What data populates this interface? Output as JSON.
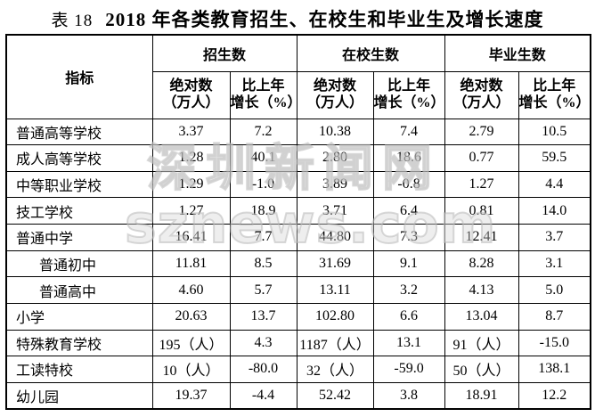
{
  "title": {
    "label": "表 18",
    "text": "2018 年各类教育招生、在校生和毕业生及增长速度"
  },
  "table": {
    "indicator_header": "指标",
    "groups": [
      {
        "label": "招生数"
      },
      {
        "label": "在校生数"
      },
      {
        "label": "毕业生数"
      }
    ],
    "subheaders": {
      "absolute_line1": "绝对数",
      "absolute_line2": "（万人）",
      "growth_line1": "比上年",
      "growth_line2": "增长（%）"
    },
    "rows": [
      {
        "label": "普通高等学校",
        "indent": false,
        "values": [
          "3.37",
          "7.2",
          "10.38",
          "7.4",
          "2.79",
          "10.5"
        ]
      },
      {
        "label": "成人高等学校",
        "indent": false,
        "values": [
          "1.28",
          "40.1",
          "2.80",
          "18.6",
          "0.77",
          "59.5"
        ]
      },
      {
        "label": "中等职业学校",
        "indent": false,
        "values": [
          "1.29",
          "-1.0",
          "3.89",
          "-0.8",
          "1.27",
          "4.4"
        ]
      },
      {
        "label": "技工学校",
        "indent": false,
        "values": [
          "1.27",
          "18.9",
          "3.71",
          "6.4",
          "0.81",
          "14.0"
        ]
      },
      {
        "label": "普通中学",
        "indent": false,
        "values": [
          "16.41",
          "7.7",
          "44.80",
          "7.3",
          "12.41",
          "3.7"
        ]
      },
      {
        "label": "普通初中",
        "indent": true,
        "values": [
          "11.81",
          "8.5",
          "31.69",
          "9.1",
          "8.28",
          "3.1"
        ]
      },
      {
        "label": "普通高中",
        "indent": true,
        "values": [
          "4.60",
          "5.7",
          "13.11",
          "3.2",
          "4.13",
          "5.0"
        ]
      },
      {
        "label": "小学",
        "indent": false,
        "values": [
          "20.63",
          "13.7",
          "102.80",
          "6.6",
          "13.04",
          "8.7"
        ]
      },
      {
        "label": "特殊教育学校",
        "indent": false,
        "values": [
          "195（人）",
          "4.3",
          "1187（人）",
          "13.1",
          "91（人）",
          "-15.0"
        ]
      },
      {
        "label": "工读特校",
        "indent": false,
        "values": [
          "10（人）",
          "-80.0",
          "32（人）",
          "-59.0",
          "50（人）",
          "138.1"
        ]
      },
      {
        "label": "幼儿园",
        "indent": false,
        "values": [
          "19.37",
          "-4.4",
          "52.42",
          "3.8",
          "18.91",
          "12.2"
        ]
      }
    ]
  },
  "watermark": {
    "line1": "深圳新闻网",
    "line2": "sznews.com"
  },
  "colors": {
    "text": "#000000",
    "border": "#000000",
    "background": "#ffffff",
    "watermark": "#d4d4d4"
  }
}
